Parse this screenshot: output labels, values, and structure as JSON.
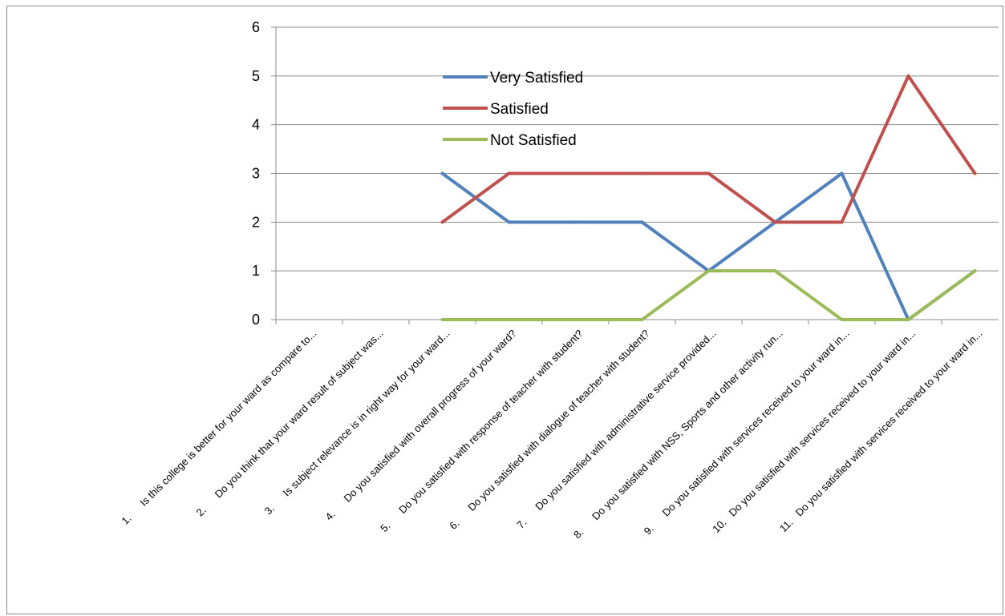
{
  "chart_data": {
    "type": "line",
    "ylim": [
      0,
      6
    ],
    "yticks": [
      "0",
      "1",
      "2",
      "3",
      "4",
      "5",
      "6"
    ],
    "grid": true,
    "legend_position": "top-center",
    "categories": [
      "1.      Is this college is better for your ward as compare to...",
      "2.      Do you think that your ward result of subject was...",
      "3.      Is subject relevance is in right way for your ward...",
      "4.      Do you satisfied with overall progress of your ward?",
      "5.      Do you satisfied with response of teacher with student?",
      "6.      Do you satisfied with dialogue of teacher with student?",
      "7.      Do you satisfied with administrative service provided...",
      "8.      Do you satisfied with NSS, Sports and other activity run...",
      "9.      Do you satisfied with services received to your ward in...",
      "10.   Do you satisfied with services received to your ward in...",
      "11.   Do you satisfied with services received to your ward in..."
    ],
    "series": [
      {
        "name": "Very Satisfied",
        "color": "#4f81bd",
        "values": [
          null,
          null,
          3,
          2,
          2,
          2,
          1,
          2,
          3,
          0,
          1
        ]
      },
      {
        "name": "Satisfied",
        "color": "#c0504d",
        "values": [
          null,
          null,
          2,
          3,
          3,
          3,
          3,
          2,
          2,
          5,
          3
        ]
      },
      {
        "name": "Not Satisfied",
        "color": "#9bbb59",
        "values": [
          null,
          null,
          0,
          0,
          0,
          0,
          1,
          1,
          0,
          0,
          1
        ]
      }
    ]
  }
}
